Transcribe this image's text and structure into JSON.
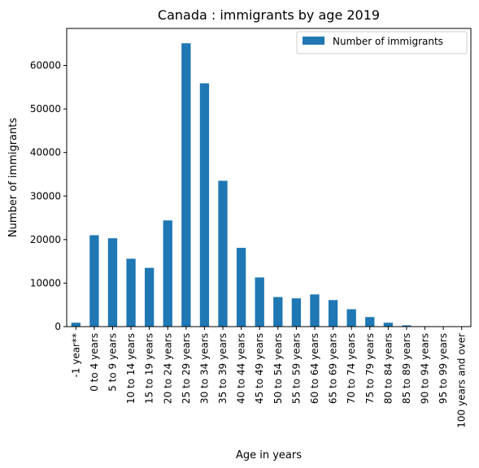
{
  "chart_data": {
    "type": "bar",
    "title": "Canada : immigrants by age 2019",
    "xlabel": "Age in years",
    "ylabel": "Number of immigrants",
    "categories": [
      "-1 year**",
      "0 to 4 years",
      "5 to 9 years",
      "10 to 14 years",
      "15 to 19 years",
      "20 to 24 years",
      "25 to 29 years",
      "30 to 34 years",
      "35 to 39 years",
      "40 to 44 years",
      "45 to 49 years",
      "50 to 54 years",
      "55 to 59 years",
      "60 to 64 years",
      "65 to 69 years",
      "70 to 74 years",
      "75 to 79 years",
      "80 to 84 years",
      "85 to 89 years",
      "90 to 94 years",
      "95 to 99 years",
      "100 years and over"
    ],
    "series": [
      {
        "name": "Number of immigrants",
        "color": "#1f77b4",
        "values": [
          900,
          21000,
          20300,
          15600,
          13500,
          24400,
          65100,
          55900,
          33500,
          18100,
          11300,
          6800,
          6500,
          7400,
          6100,
          4000,
          2200,
          900,
          300,
          100,
          20,
          10
        ]
      }
    ],
    "ylim": [
      0,
      68500
    ],
    "yticks": [
      0,
      10000,
      20000,
      30000,
      40000,
      50000,
      60000
    ],
    "legend_position": "top-right",
    "grid": false
  }
}
